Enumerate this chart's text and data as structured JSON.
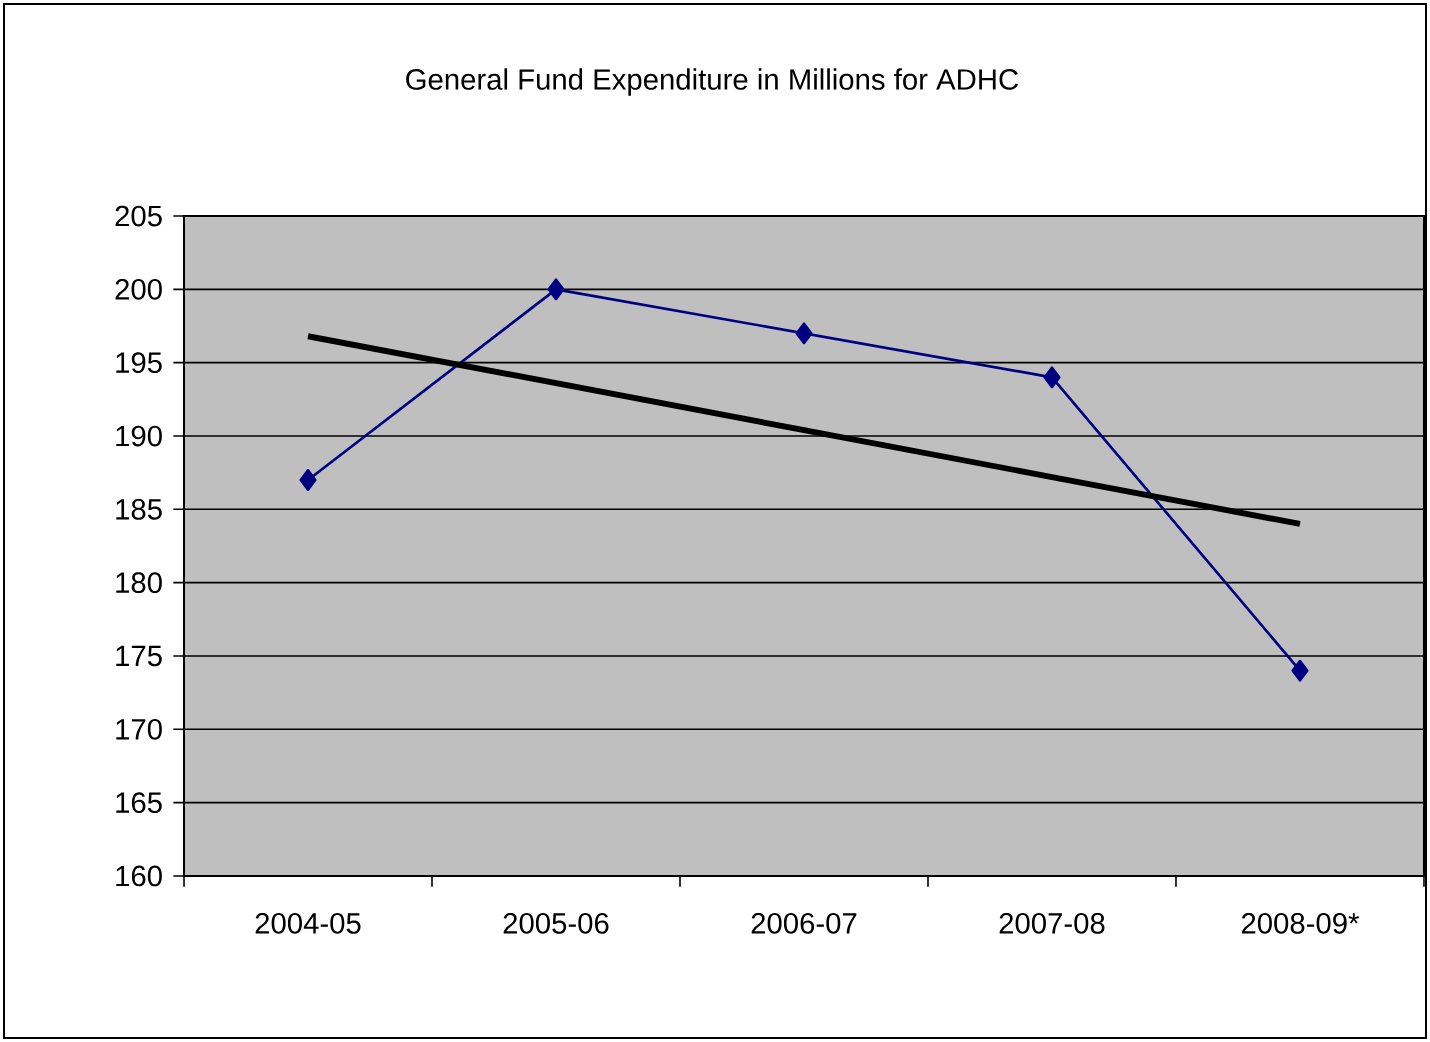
{
  "chart_data": {
    "type": "line",
    "title": "General Fund Expenditure in Millions for ADHC",
    "categories": [
      "2004-05",
      "2005-06",
      "2006-07",
      "2007-08",
      "2008-09*"
    ],
    "series": [
      {
        "values": [
          187,
          200,
          197,
          194,
          174
        ],
        "color": "#000080",
        "marker": "diamond"
      },
      {
        "type": "line",
        "values": [
          196.8,
          193.6,
          190.4,
          187.2,
          184.0
        ],
        "color": "#000000",
        "marker": "none"
      }
    ],
    "ylim": [
      160,
      205
    ],
    "yticks": [
      160,
      165,
      170,
      175,
      180,
      185,
      190,
      195,
      200,
      205
    ],
    "grid": "y"
  }
}
